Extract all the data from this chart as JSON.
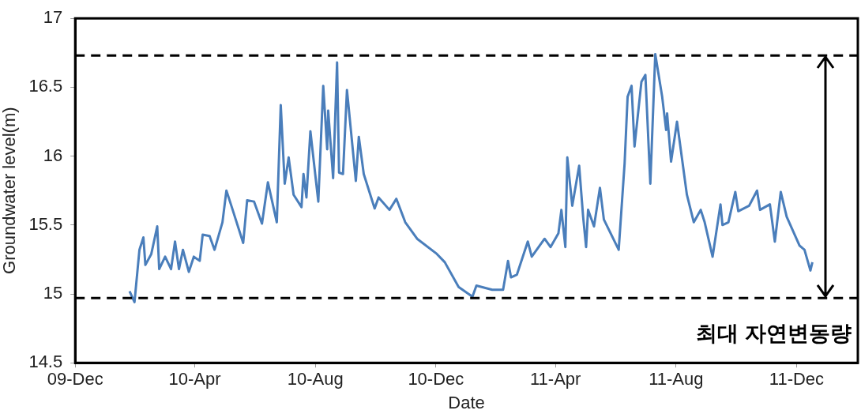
{
  "chart_data": {
    "type": "line",
    "xlabel": "Date",
    "ylabel": "Groundwater level(m)",
    "xlim": [
      "2009-12-01",
      "2012-02-01"
    ],
    "xticks": [
      {
        "value": "2009-12-01",
        "label": "09-Dec"
      },
      {
        "value": "2010-04-01",
        "label": "10-Apr"
      },
      {
        "value": "2010-08-01",
        "label": "10-Aug"
      },
      {
        "value": "2010-12-01",
        "label": "10-Dec"
      },
      {
        "value": "2011-04-01",
        "label": "11-Apr"
      },
      {
        "value": "2011-08-01",
        "label": "11-Aug"
      },
      {
        "value": "2011-12-01",
        "label": "11-Dec"
      }
    ],
    "ylim": [
      14.5,
      17
    ],
    "yticks": [
      14.5,
      15,
      15.5,
      16,
      16.5,
      17
    ],
    "grid": false,
    "legend": false,
    "marker": "none",
    "line_style": "solid",
    "ref_lines": [
      {
        "axis": "y",
        "value": 16.73,
        "color": "#000000",
        "line_style": "dashed"
      },
      {
        "axis": "y",
        "value": 14.97,
        "color": "#000000",
        "line_style": "dashed"
      }
    ],
    "annotations": [
      {
        "text": "최대 자연변동량",
        "x": "2011-12-30",
        "y": 16.73
      }
    ],
    "series": [
      {
        "color": "#4a7ebb",
        "x": [
          "2010-01-25",
          "2010-01-30",
          "2010-02-04",
          "2010-02-08",
          "2010-02-10",
          "2010-02-16",
          "2010-02-22",
          "2010-02-24",
          "2010-03-02",
          "2010-03-08",
          "2010-03-12",
          "2010-03-16",
          "2010-03-20",
          "2010-03-26",
          "2010-03-31",
          "2010-04-06",
          "2010-04-09",
          "2010-04-16",
          "2010-04-21",
          "2010-04-29",
          "2010-05-03",
          "2010-05-08",
          "2010-05-20",
          "2010-05-24",
          "2010-05-31",
          "2010-06-08",
          "2010-06-14",
          "2010-06-23",
          "2010-06-27",
          "2010-07-01",
          "2010-07-05",
          "2010-07-10",
          "2010-07-18",
          "2010-07-20",
          "2010-07-23",
          "2010-07-27",
          "2010-08-04",
          "2010-08-09",
          "2010-08-13",
          "2010-08-14",
          "2010-08-19",
          "2010-08-23",
          "2010-08-25",
          "2010-08-29",
          "2010-09-02",
          "2010-09-11",
          "2010-09-14",
          "2010-09-19",
          "2010-09-30",
          "2010-10-04",
          "2010-10-15",
          "2010-10-22",
          "2010-10-31",
          "2010-11-12",
          "2010-12-02",
          "2010-12-10",
          "2010-12-24",
          "2011-01-07",
          "2011-01-11",
          "2011-01-27",
          "2011-02-07",
          "2011-02-12",
          "2011-02-15",
          "2011-02-21",
          "2011-03-04",
          "2011-03-08",
          "2011-03-21",
          "2011-03-27",
          "2011-04-04",
          "2011-04-07",
          "2011-04-11",
          "2011-04-13",
          "2011-04-18",
          "2011-04-25",
          "2011-04-29",
          "2011-05-02",
          "2011-05-04",
          "2011-05-10",
          "2011-05-16",
          "2011-05-20",
          "2011-06-04",
          "2011-06-10",
          "2011-06-13",
          "2011-06-17",
          "2011-06-20",
          "2011-06-27",
          "2011-07-01",
          "2011-07-06",
          "2011-07-11",
          "2011-07-18",
          "2011-07-22",
          "2011-07-23",
          "2011-07-27",
          "2011-08-02",
          "2011-08-12",
          "2011-08-19",
          "2011-08-26",
          "2011-08-30",
          "2011-09-07",
          "2011-09-15",
          "2011-09-17",
          "2011-09-23",
          "2011-09-30",
          "2011-10-03",
          "2011-10-14",
          "2011-10-22",
          "2011-10-25",
          "2011-11-04",
          "2011-11-09",
          "2011-11-15",
          "2011-11-21",
          "2011-12-04",
          "2011-12-09",
          "2011-12-15",
          "2011-12-17"
        ],
        "values": [
          15.02,
          14.94,
          15.32,
          15.41,
          15.21,
          15.29,
          15.49,
          15.18,
          15.27,
          15.18,
          15.38,
          15.18,
          15.32,
          15.16,
          15.27,
          15.24,
          15.43,
          15.42,
          15.32,
          15.52,
          15.75,
          15.64,
          15.37,
          15.68,
          15.67,
          15.51,
          15.81,
          15.52,
          16.37,
          15.8,
          15.99,
          15.72,
          15.63,
          15.87,
          15.7,
          16.18,
          15.67,
          16.51,
          16.05,
          16.33,
          15.84,
          16.68,
          15.88,
          15.87,
          16.48,
          15.82,
          16.14,
          15.87,
          15.62,
          15.7,
          15.61,
          15.69,
          15.52,
          15.4,
          15.29,
          15.23,
          15.05,
          14.98,
          15.06,
          15.03,
          15.03,
          15.24,
          15.12,
          15.14,
          15.38,
          15.27,
          15.4,
          15.34,
          15.44,
          15.61,
          15.34,
          15.99,
          15.64,
          15.93,
          15.56,
          15.34,
          15.61,
          15.49,
          15.77,
          15.54,
          15.32,
          15.95,
          16.43,
          16.51,
          16.07,
          16.54,
          16.59,
          15.8,
          16.74,
          16.43,
          16.19,
          16.31,
          15.96,
          16.25,
          15.72,
          15.52,
          15.61,
          15.52,
          15.27,
          15.65,
          15.5,
          15.52,
          15.74,
          15.6,
          15.64,
          15.75,
          15.61,
          15.65,
          15.38,
          15.74,
          15.56,
          15.35,
          15.32,
          15.17,
          15.23
        ]
      }
    ]
  }
}
